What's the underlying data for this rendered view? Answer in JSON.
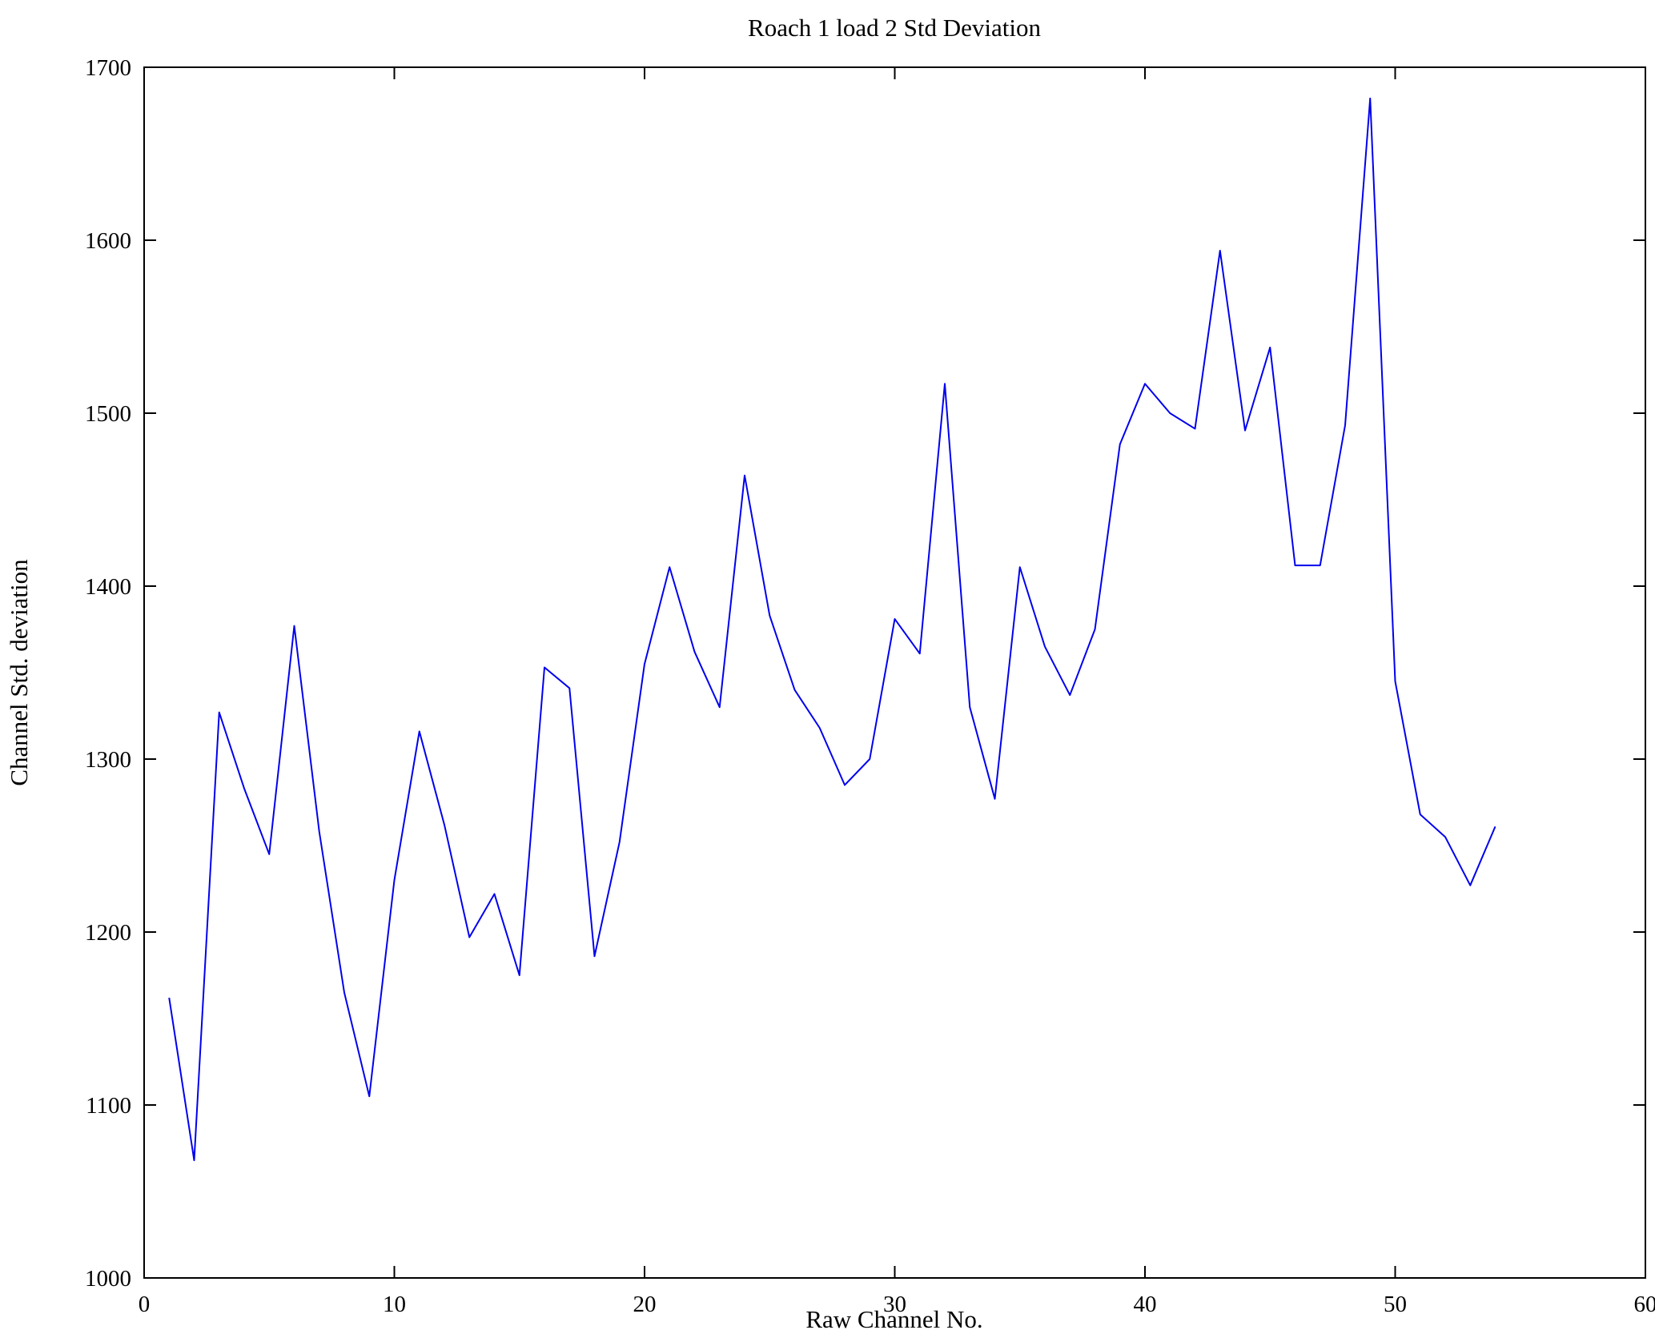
{
  "chart_data": {
    "type": "line",
    "title": "Roach 1 load 2 Std Deviation",
    "xlabel": "Raw Channel No.",
    "ylabel": "Channel Std. deviation",
    "xlim": [
      0,
      60
    ],
    "ylim": [
      1000,
      1700
    ],
    "xticks": [
      0,
      10,
      20,
      30,
      40,
      50,
      60
    ],
    "yticks": [
      1000,
      1100,
      1200,
      1300,
      1400,
      1500,
      1600,
      1700
    ],
    "grid": false,
    "legend": "none",
    "line_color": "#0000ee",
    "axis_color": "#000000",
    "background_color": "#ffffff",
    "series": [
      {
        "name": "Channel Std. deviation",
        "x": [
          1,
          2,
          3,
          4,
          5,
          6,
          7,
          8,
          9,
          10,
          11,
          12,
          13,
          14,
          15,
          16,
          17,
          18,
          19,
          20,
          21,
          22,
          23,
          24,
          25,
          26,
          27,
          28,
          29,
          30,
          31,
          32,
          33,
          34,
          35,
          36,
          37,
          38,
          39,
          40,
          41,
          42,
          43,
          44,
          45,
          46,
          47,
          48,
          49,
          50,
          51,
          52,
          53,
          54
        ],
        "y": [
          1162,
          1068,
          1327,
          1283,
          1245,
          1377,
          1258,
          1165,
          1105,
          1230,
          1316,
          1262,
          1197,
          1222,
          1175,
          1353,
          1341,
          1186,
          1252,
          1355,
          1411,
          1362,
          1330,
          1464,
          1383,
          1340,
          1318,
          1285,
          1300,
          1381,
          1361,
          1517,
          1330,
          1277,
          1411,
          1365,
          1337,
          1375,
          1482,
          1517,
          1500,
          1491,
          1594,
          1490,
          1538,
          1412,
          1412,
          1493,
          1682,
          1345,
          1268,
          1255,
          1227,
          1261
        ]
      }
    ]
  }
}
